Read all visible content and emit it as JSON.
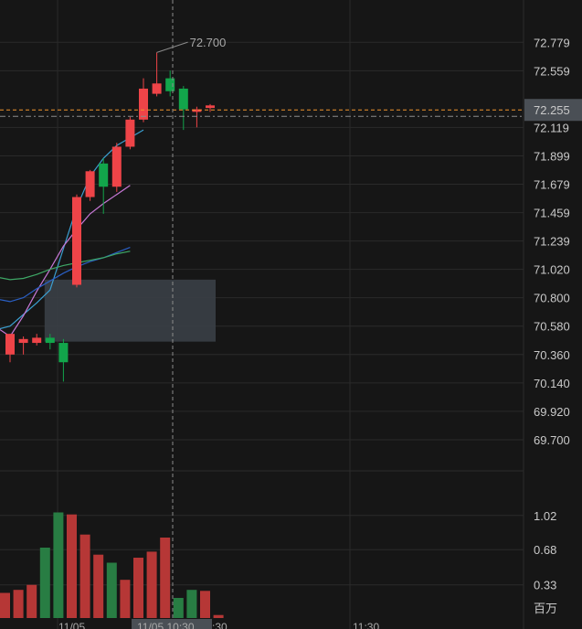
{
  "chart_data": {
    "type": "candlestick",
    "price_axis": {
      "ticks": [
        "72.779",
        "72.559",
        "72.119",
        "71.899",
        "71.679",
        "71.459",
        "71.239",
        "71.020",
        "70.800",
        "70.580",
        "70.360",
        "70.140",
        "69.920",
        "69.700"
      ],
      "range": [
        69.48,
        73.05
      ]
    },
    "current_price": {
      "value": 72.255,
      "label": "72.255",
      "color": "#f0942c"
    },
    "max_marker": {
      "value": 72.7,
      "label": "72.700"
    },
    "crosshair_label": "11/05 10:30",
    "time_labels": [
      "11/05",
      ":30",
      "11:30"
    ],
    "candles": [
      {
        "o": 70.36,
        "c": 70.52,
        "h": 70.52,
        "l": 70.3,
        "dir": "up"
      },
      {
        "o": 70.45,
        "c": 70.48,
        "h": 70.5,
        "l": 70.36,
        "dir": "up"
      },
      {
        "o": 70.45,
        "c": 70.49,
        "h": 70.52,
        "l": 70.43,
        "dir": "up"
      },
      {
        "o": 70.49,
        "c": 70.45,
        "h": 70.52,
        "l": 70.4,
        "dir": "down"
      },
      {
        "o": 70.45,
        "c": 70.3,
        "h": 70.48,
        "l": 70.15,
        "dir": "down"
      },
      {
        "o": 70.9,
        "c": 71.58,
        "h": 71.6,
        "l": 70.88,
        "dir": "up"
      },
      {
        "o": 71.58,
        "c": 71.78,
        "h": 71.79,
        "l": 71.55,
        "dir": "up"
      },
      {
        "o": 71.84,
        "c": 71.66,
        "h": 71.88,
        "l": 71.45,
        "dir": "down"
      },
      {
        "o": 71.66,
        "c": 71.97,
        "h": 72.0,
        "l": 71.62,
        "dir": "up"
      },
      {
        "o": 71.97,
        "c": 72.18,
        "h": 72.2,
        "l": 71.95,
        "dir": "up"
      },
      {
        "o": 72.18,
        "c": 72.42,
        "h": 72.5,
        "l": 72.16,
        "dir": "up"
      },
      {
        "o": 72.38,
        "c": 72.46,
        "h": 72.7,
        "l": 72.36,
        "dir": "up"
      },
      {
        "o": 72.5,
        "c": 72.4,
        "h": 72.56,
        "l": 72.36,
        "dir": "down"
      },
      {
        "o": 72.42,
        "c": 72.26,
        "h": 72.44,
        "l": 72.1,
        "dir": "down"
      },
      {
        "o": 72.24,
        "c": 72.26,
        "h": 72.28,
        "l": 72.12,
        "dir": "up"
      },
      {
        "o": 72.27,
        "c": 72.29,
        "h": 72.3,
        "l": 72.24,
        "dir": "up"
      }
    ],
    "moving_averages": [
      {
        "color": "#3b9fd1",
        "points": [
          [
            -5,
            70.45
          ],
          [
            0,
            70.58
          ],
          [
            1,
            70.67
          ],
          [
            2,
            70.76
          ],
          [
            3,
            70.86
          ],
          [
            4,
            71.18
          ],
          [
            5,
            71.5
          ],
          [
            6,
            71.74
          ],
          [
            7,
            71.88
          ],
          [
            8,
            71.98
          ],
          [
            9,
            72.04
          ],
          [
            10,
            72.1
          ]
        ]
      },
      {
        "color": "#c778d6",
        "points": [
          [
            -5,
            70.74
          ],
          [
            -3,
            70.64
          ],
          [
            -2,
            70.6
          ],
          [
            -1,
            70.57
          ],
          [
            0,
            70.5
          ],
          [
            1,
            70.66
          ],
          [
            2,
            70.85
          ],
          [
            3,
            71.02
          ],
          [
            4,
            71.2
          ],
          [
            5,
            71.33
          ],
          [
            6,
            71.45
          ],
          [
            7,
            71.53
          ],
          [
            8,
            71.6
          ],
          [
            9,
            71.67
          ]
        ]
      },
      {
        "color": "#2a5fc4",
        "points": [
          [
            -5,
            70.82
          ],
          [
            -3,
            70.8
          ],
          [
            -1,
            70.79
          ],
          [
            0,
            70.77
          ],
          [
            1,
            70.8
          ],
          [
            2,
            70.87
          ],
          [
            3,
            70.93
          ],
          [
            4,
            70.99
          ],
          [
            5,
            71.04
          ],
          [
            6,
            71.08
          ],
          [
            7,
            71.11
          ],
          [
            8,
            71.15
          ],
          [
            9,
            71.19
          ]
        ]
      },
      {
        "color": "#3ea866",
        "points": [
          [
            -5,
            71.0
          ],
          [
            -3,
            70.97
          ],
          [
            -1,
            70.96
          ],
          [
            0,
            70.94
          ],
          [
            1,
            70.95
          ],
          [
            2,
            70.98
          ],
          [
            3,
            71.02
          ],
          [
            4,
            71.05
          ],
          [
            5,
            71.07
          ],
          [
            6,
            71.09
          ],
          [
            7,
            71.11
          ],
          [
            8,
            71.14
          ],
          [
            9,
            71.16
          ]
        ]
      }
    ],
    "highlight_box": {
      "from_bar": 3,
      "to_bar": 15,
      "low": 70.46,
      "high": 70.94
    },
    "volume_axis": {
      "ticks": [
        "1.02",
        "0.68",
        "0.33"
      ],
      "unit": "百万",
      "max": 1.1
    },
    "volumes": [
      {
        "v": 0.25,
        "dir": "down"
      },
      {
        "v": 0.28,
        "dir": "down"
      },
      {
        "v": 0.33,
        "dir": "down"
      },
      {
        "v": 0.7,
        "dir": "up"
      },
      {
        "v": 1.05,
        "dir": "up"
      },
      {
        "v": 1.03,
        "dir": "down"
      },
      {
        "v": 0.83,
        "dir": "down"
      },
      {
        "v": 0.63,
        "dir": "down"
      },
      {
        "v": 0.55,
        "dir": "up"
      },
      {
        "v": 0.38,
        "dir": "down"
      },
      {
        "v": 0.6,
        "dir": "down"
      },
      {
        "v": 0.66,
        "dir": "down"
      },
      {
        "v": 0.8,
        "dir": "down"
      },
      {
        "v": 0.2,
        "dir": "up"
      },
      {
        "v": 0.28,
        "dir": "up"
      },
      {
        "v": 0.27,
        "dir": "down"
      },
      {
        "v": 0.03,
        "dir": "down"
      }
    ],
    "colors": {
      "up": "#ee4448",
      "down": "#12a54b",
      "vol_up": "#b63736",
      "vol_down": "#287d43",
      "grid": "#2a2a2a",
      "bg": "#161616"
    }
  }
}
